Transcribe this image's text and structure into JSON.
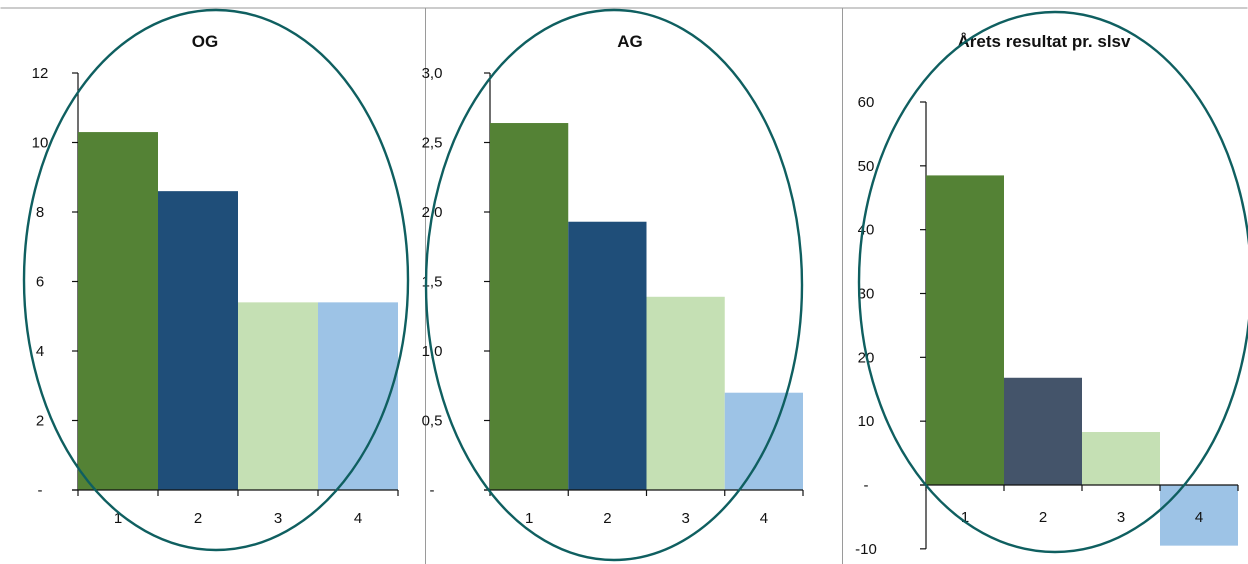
{
  "chart_data": [
    {
      "type": "bar",
      "title": "OG",
      "categories": [
        "1",
        "2",
        "3",
        "4"
      ],
      "values": [
        10.3,
        8.6,
        5.4,
        5.4
      ],
      "colors": [
        "#548235",
        "#1f4e79",
        "#c5e0b4",
        "#9dc3e6"
      ],
      "yticks": [
        "-",
        "2",
        "4",
        "6",
        "8",
        "10",
        "12"
      ],
      "ylim": [
        0,
        12
      ],
      "grid": false,
      "legend": "none"
    },
    {
      "type": "bar",
      "title": "AG",
      "categories": [
        "1",
        "2",
        "3",
        "4"
      ],
      "values": [
        2.64,
        1.93,
        1.39,
        0.7
      ],
      "colors": [
        "#548235",
        "#1f4e79",
        "#c5e0b4",
        "#9dc3e6"
      ],
      "yticks": [
        "-",
        "0,5",
        "1,0",
        "1,5",
        "2,0",
        "2,5",
        "3,0"
      ],
      "ylim": [
        0,
        3
      ],
      "grid": false,
      "legend": "none"
    },
    {
      "type": "bar",
      "title": "Årets resultat pr. slsv",
      "categories": [
        "1",
        "2",
        "3",
        "4"
      ],
      "values": [
        48.5,
        16.8,
        8.3,
        -9.5
      ],
      "colors": [
        "#548235",
        "#44546a",
        "#c5e0b4",
        "#9dc3e6"
      ],
      "yticks": [
        "-10",
        "-",
        "10",
        "20",
        "30",
        "40",
        "50",
        "60"
      ],
      "ylim": [
        -10,
        60
      ],
      "grid": false,
      "legend": "none"
    }
  ]
}
